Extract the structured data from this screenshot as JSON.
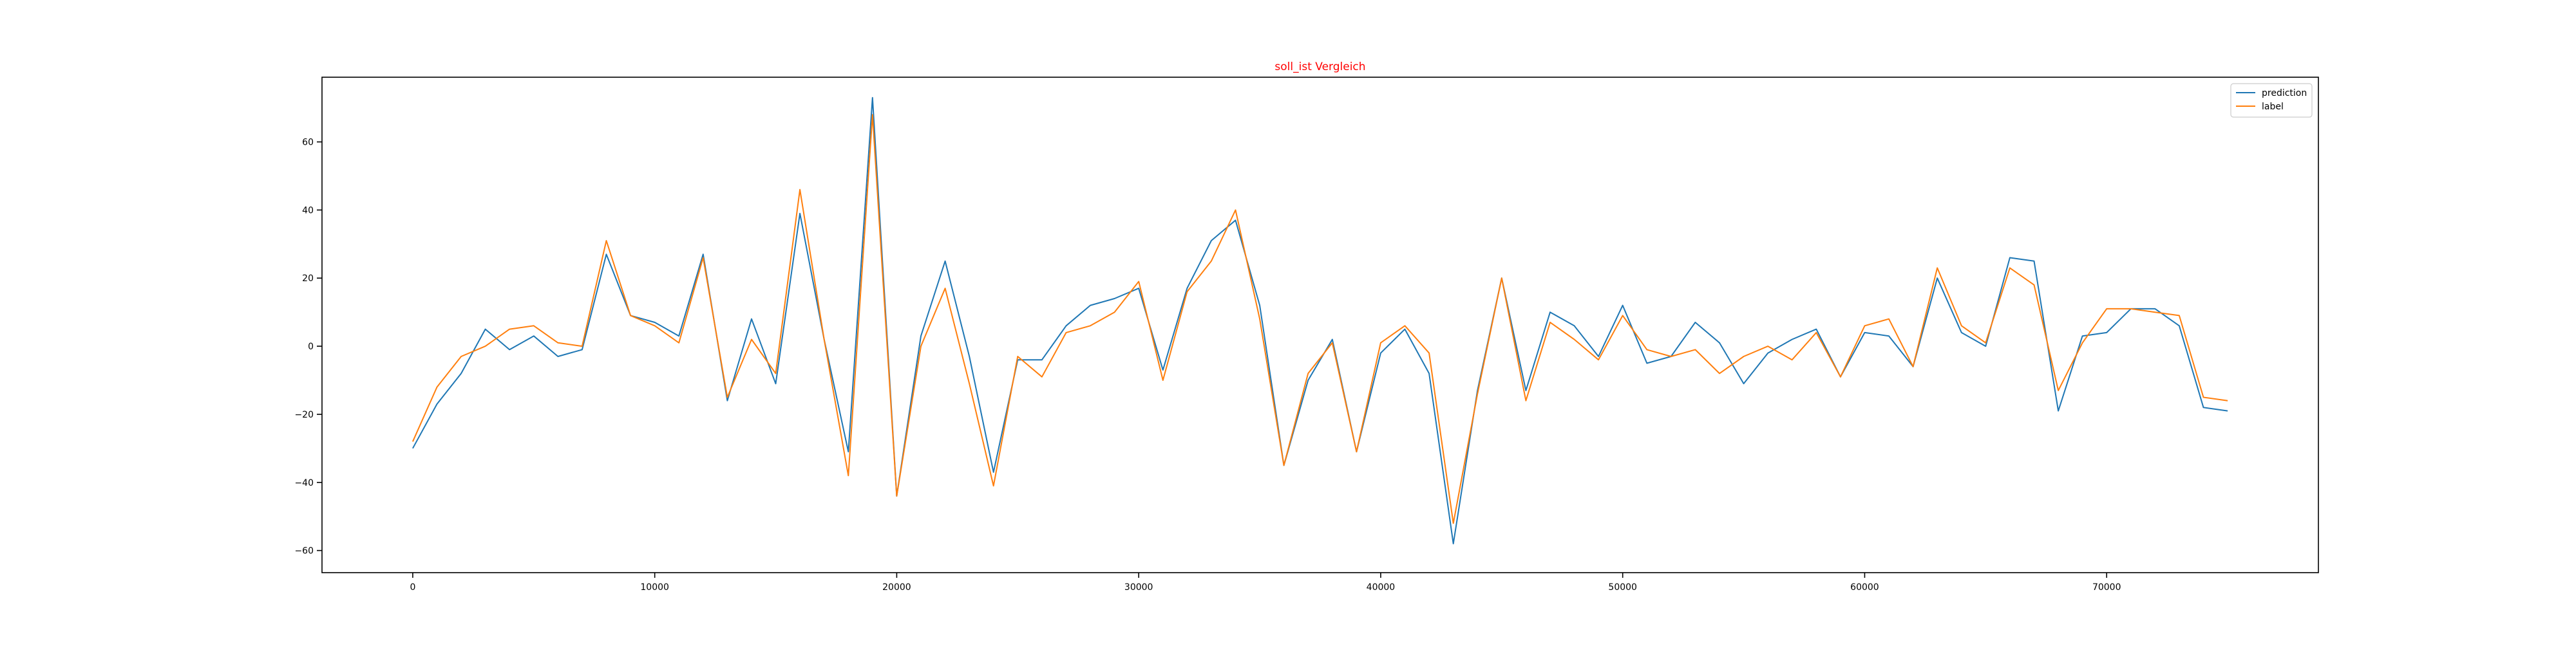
{
  "chart_data": {
    "type": "line",
    "title": "soll_ist Vergleich",
    "title_color": "#ff0000",
    "xlabel": "",
    "ylabel": "",
    "xlim": [
      -3750,
      78750
    ],
    "ylim": [
      -66.5,
      79.0
    ],
    "x_ticks": [
      0,
      10000,
      20000,
      30000,
      40000,
      50000,
      60000,
      70000
    ],
    "y_ticks": [
      -60,
      -40,
      -20,
      0,
      20,
      40,
      60
    ],
    "x_tick_labels": [
      "0",
      "10000",
      "20000",
      "30000",
      "40000",
      "50000",
      "60000",
      "70000"
    ],
    "y_tick_labels": [
      "−60",
      "−40",
      "−20",
      "0",
      "20",
      "40",
      "60"
    ],
    "grid": false,
    "legend_position": "top-right",
    "x": [
      0,
      1000,
      2000,
      3000,
      4000,
      5000,
      6000,
      7000,
      8000,
      9000,
      10000,
      11000,
      12000,
      13000,
      14000,
      15000,
      16000,
      17000,
      18000,
      19000,
      20000,
      21000,
      22000,
      23000,
      24000,
      25000,
      26000,
      27000,
      28000,
      29000,
      30000,
      31000,
      32000,
      33000,
      34000,
      35000,
      36000,
      37000,
      38000,
      39000,
      40000,
      41000,
      42000,
      43000,
      44000,
      45000,
      46000,
      47000,
      48000,
      49000,
      50000,
      51000,
      52000,
      53000,
      54000,
      55000,
      56000,
      57000,
      58000,
      59000,
      60000,
      61000,
      62000,
      63000,
      64000,
      65000,
      66000,
      67000,
      68000,
      69000,
      70000,
      71000,
      72000,
      73000,
      74000,
      75000
    ],
    "series": [
      {
        "name": "prediction",
        "color": "#1f77b4",
        "values": [
          -30,
          -17,
          -8,
          5,
          -1,
          3,
          -3,
          -1,
          27,
          9,
          7,
          3,
          27,
          -16,
          8,
          -11,
          39,
          2,
          -31,
          73,
          -44,
          3,
          25,
          -3,
          -37,
          -4,
          -4,
          6,
          12,
          14,
          17,
          -7,
          17,
          31,
          37,
          12,
          -35,
          -10,
          2,
          -31,
          -2,
          5,
          -8,
          -58,
          -13,
          20,
          -13,
          10,
          6,
          -3,
          12,
          -5,
          -3,
          7,
          1,
          -11,
          -2,
          2,
          5,
          -9,
          4,
          3,
          -6,
          20,
          4,
          0,
          26,
          25,
          -19,
          3,
          4,
          11,
          11,
          6,
          -18,
          -19
        ]
      },
      {
        "name": "label",
        "color": "#ff7f0e",
        "values": [
          -28,
          -12,
          -3,
          0,
          5,
          6,
          1,
          0,
          31,
          9,
          6,
          1,
          26,
          -15,
          2,
          -8,
          46,
          2,
          -38,
          68,
          -44,
          0,
          17,
          -11,
          -41,
          -3,
          -9,
          4,
          6,
          10,
          19,
          -10,
          16,
          25,
          40,
          8,
          -35,
          -8,
          1,
          -31,
          1,
          6,
          -2,
          -52,
          -14,
          20,
          -16,
          7,
          2,
          -4,
          9,
          -1,
          -3,
          -1,
          -8,
          -3,
          0,
          -4,
          4,
          -9,
          6,
          8,
          -6,
          23,
          6,
          1,
          23,
          18,
          -13,
          1,
          11,
          11,
          10,
          9,
          -15,
          -16
        ]
      }
    ]
  }
}
